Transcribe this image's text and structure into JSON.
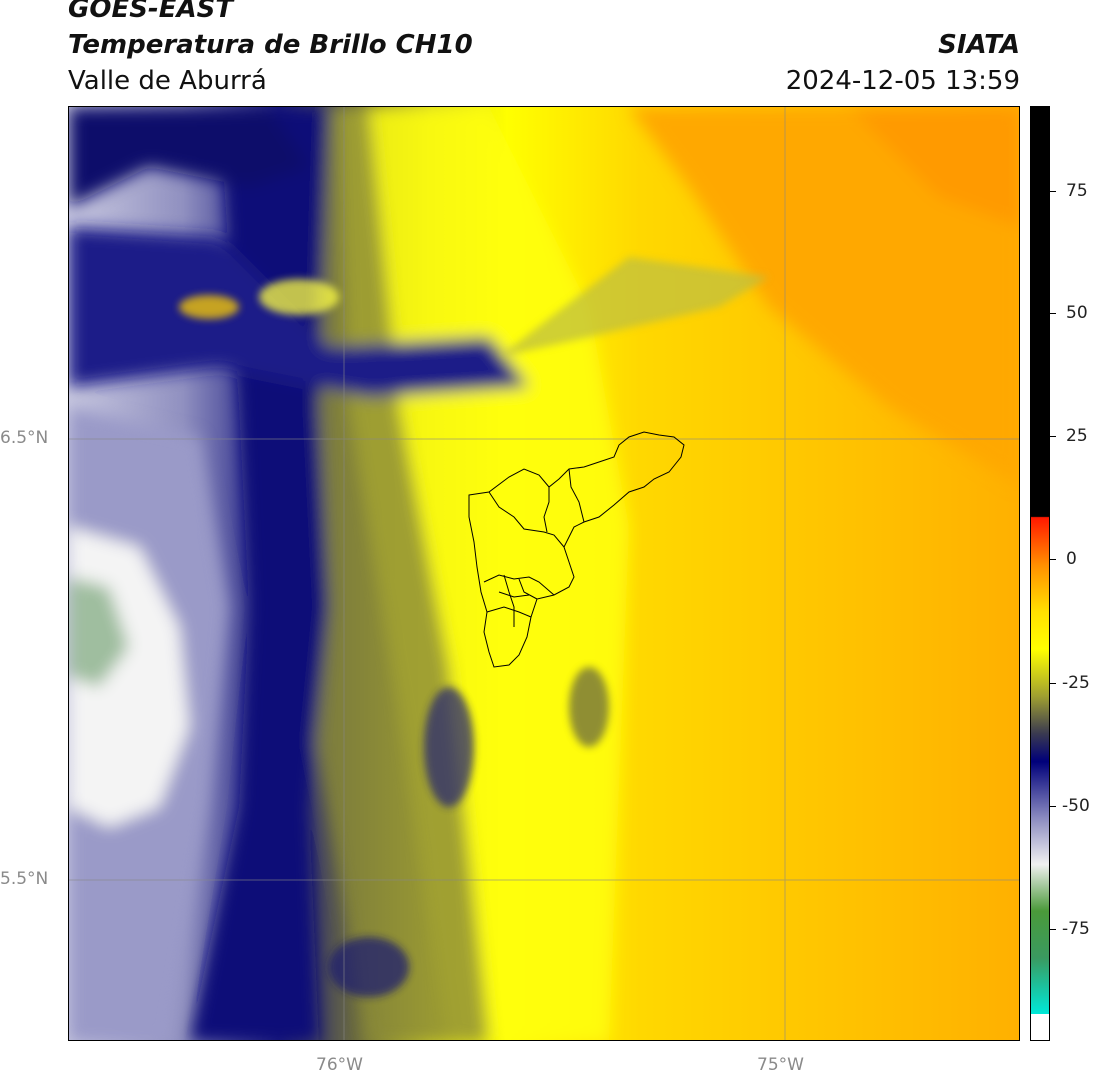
{
  "header": {
    "satellite": "GOES-EAST",
    "product": "Temperatura de Brillo CH10",
    "region": "Valle de Aburrá",
    "organization": "SIATA",
    "datetime": "2024-12-05 13:59"
  },
  "axes": {
    "lat_labels": [
      "6.5°N",
      "5.5°N"
    ],
    "lon_labels": [
      "76°W",
      "75°W"
    ]
  },
  "colorbar": {
    "tick_labels": [
      "75",
      "50",
      "25",
      "0",
      "-25",
      "-50",
      "-75"
    ],
    "colors": {
      "top_black": "#000000",
      "red": "#ff2a00",
      "orange": "#ffa000",
      "yellow": "#ffff00",
      "olive": "#7a7a3a",
      "navy": "#00007a",
      "lavender": "#b8b8d8",
      "white": "#ffffff",
      "green": "#3a8a3a",
      "cyan": "#00e0d0"
    }
  }
}
